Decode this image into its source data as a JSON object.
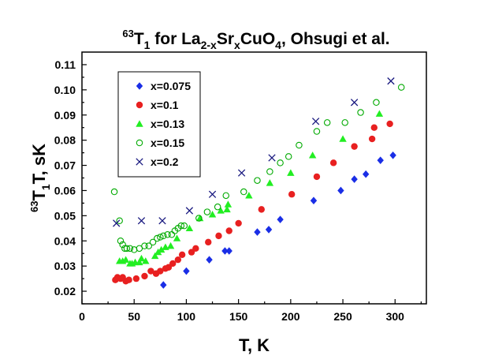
{
  "chart_data": {
    "type": "scatter",
    "title": {
      "sup": "63",
      "main1": "T",
      "sub1": "1",
      "main2": " for La",
      "sub2": "2-x",
      "main3": "Sr",
      "sub3": "x",
      "main4": "CuO",
      "sub4": "4",
      "main5": ", Ohsugi et al."
    },
    "xlabel": "T, K",
    "ylabel": {
      "sup": "63",
      "main1": "T",
      "sub1": "1",
      "main2": "T, sK"
    },
    "xlim": [
      0,
      330
    ],
    "ylim": [
      0.015,
      0.115
    ],
    "xticks": [
      0,
      50,
      100,
      150,
      200,
      250,
      300
    ],
    "yticks": [
      0.02,
      0.03,
      0.04,
      0.05,
      0.06,
      0.07,
      0.08,
      0.09,
      0.1,
      0.11
    ],
    "ytick_labels": [
      "0.02",
      "0.03",
      "0.04",
      "0.05",
      "0.06",
      "0.07",
      "0.08",
      "0.09",
      "0.10",
      "0.11"
    ],
    "legend_position": "upper-left",
    "series": [
      {
        "name": "x=0.075",
        "marker": "diamond",
        "color": "#1a2ee6",
        "points": [
          [
            78,
            0.0225
          ],
          [
            100,
            0.028
          ],
          [
            122,
            0.0325
          ],
          [
            137,
            0.036
          ],
          [
            141,
            0.036
          ],
          [
            168,
            0.0435
          ],
          [
            179,
            0.0445
          ],
          [
            190,
            0.0485
          ],
          [
            222,
            0.056
          ],
          [
            248,
            0.06
          ],
          [
            261,
            0.0645
          ],
          [
            272,
            0.0665
          ],
          [
            286,
            0.072
          ],
          [
            298,
            0.074
          ]
        ]
      },
      {
        "name": "x=0.1",
        "marker": "circle",
        "color": "#e82020",
        "points": [
          [
            32,
            0.0245
          ],
          [
            34,
            0.0255
          ],
          [
            37,
            0.025
          ],
          [
            39,
            0.0255
          ],
          [
            42,
            0.024
          ],
          [
            45,
            0.0245
          ],
          [
            52,
            0.025
          ],
          [
            60,
            0.026
          ],
          [
            66,
            0.028
          ],
          [
            71,
            0.027
          ],
          [
            75,
            0.028
          ],
          [
            80,
            0.029
          ],
          [
            83,
            0.0295
          ],
          [
            87,
            0.031
          ],
          [
            92,
            0.0325
          ],
          [
            96,
            0.0345
          ],
          [
            105,
            0.0355
          ],
          [
            109,
            0.037
          ],
          [
            121,
            0.0395
          ],
          [
            131,
            0.042
          ],
          [
            141,
            0.044
          ],
          [
            150,
            0.047
          ],
          [
            172,
            0.0525
          ],
          [
            201,
            0.0585
          ],
          [
            225,
            0.0655
          ],
          [
            241,
            0.071
          ],
          [
            261,
            0.0775
          ],
          [
            280,
            0.085
          ],
          [
            278,
            0.0805
          ],
          [
            295,
            0.0865
          ]
        ]
      },
      {
        "name": "x=0.13",
        "marker": "triangle",
        "color": "#22ee22",
        "points": [
          [
            36,
            0.032
          ],
          [
            39,
            0.032
          ],
          [
            42,
            0.0325
          ],
          [
            46,
            0.031
          ],
          [
            48,
            0.031
          ],
          [
            51,
            0.0315
          ],
          [
            55,
            0.0315
          ],
          [
            57,
            0.033
          ],
          [
            61,
            0.032
          ],
          [
            70,
            0.034
          ],
          [
            73,
            0.0355
          ],
          [
            76,
            0.0365
          ],
          [
            80,
            0.0375
          ],
          [
            85,
            0.038
          ],
          [
            91,
            0.041
          ],
          [
            103,
            0.045
          ],
          [
            113,
            0.049
          ],
          [
            125,
            0.0505
          ],
          [
            133,
            0.052
          ],
          [
            139,
            0.0525
          ],
          [
            140,
            0.0545
          ],
          [
            160,
            0.058
          ],
          [
            180,
            0.063
          ],
          [
            200,
            0.067
          ],
          [
            221,
            0.074
          ],
          [
            250,
            0.0805
          ],
          [
            285,
            0.0905
          ]
        ]
      },
      {
        "name": "x=0.15",
        "marker": "open-circle",
        "color": "#00aa00",
        "points": [
          [
            31,
            0.0595
          ],
          [
            36,
            0.048
          ],
          [
            37,
            0.04
          ],
          [
            39,
            0.0385
          ],
          [
            41,
            0.037
          ],
          [
            43,
            0.037
          ],
          [
            46,
            0.037
          ],
          [
            50,
            0.0365
          ],
          [
            55,
            0.037
          ],
          [
            60,
            0.038
          ],
          [
            64,
            0.038
          ],
          [
            68,
            0.0395
          ],
          [
            72,
            0.041
          ],
          [
            75,
            0.0415
          ],
          [
            78,
            0.042
          ],
          [
            82,
            0.0425
          ],
          [
            86,
            0.0425
          ],
          [
            89,
            0.044
          ],
          [
            92,
            0.045
          ],
          [
            95,
            0.046
          ],
          [
            98,
            0.046
          ],
          [
            112,
            0.049
          ],
          [
            120,
            0.0515
          ],
          [
            130,
            0.0535
          ],
          [
            138,
            0.058
          ],
          [
            155,
            0.0595
          ],
          [
            168,
            0.064
          ],
          [
            180,
            0.0675
          ],
          [
            190,
            0.071
          ],
          [
            198,
            0.0735
          ],
          [
            208,
            0.078
          ],
          [
            225,
            0.0835
          ],
          [
            235,
            0.087
          ],
          [
            252,
            0.087
          ],
          [
            267,
            0.091
          ],
          [
            282,
            0.095
          ],
          [
            306,
            0.101
          ]
        ]
      },
      {
        "name": "x=0.2",
        "marker": "x",
        "color": "#1a1a80",
        "points": [
          [
            33,
            0.047
          ],
          [
            57,
            0.048
          ],
          [
            77,
            0.048
          ],
          [
            103,
            0.052
          ],
          [
            125,
            0.0585
          ],
          [
            153,
            0.067
          ],
          [
            182,
            0.073
          ],
          [
            224,
            0.0875
          ],
          [
            261,
            0.095
          ],
          [
            296,
            0.1035
          ]
        ]
      }
    ]
  }
}
